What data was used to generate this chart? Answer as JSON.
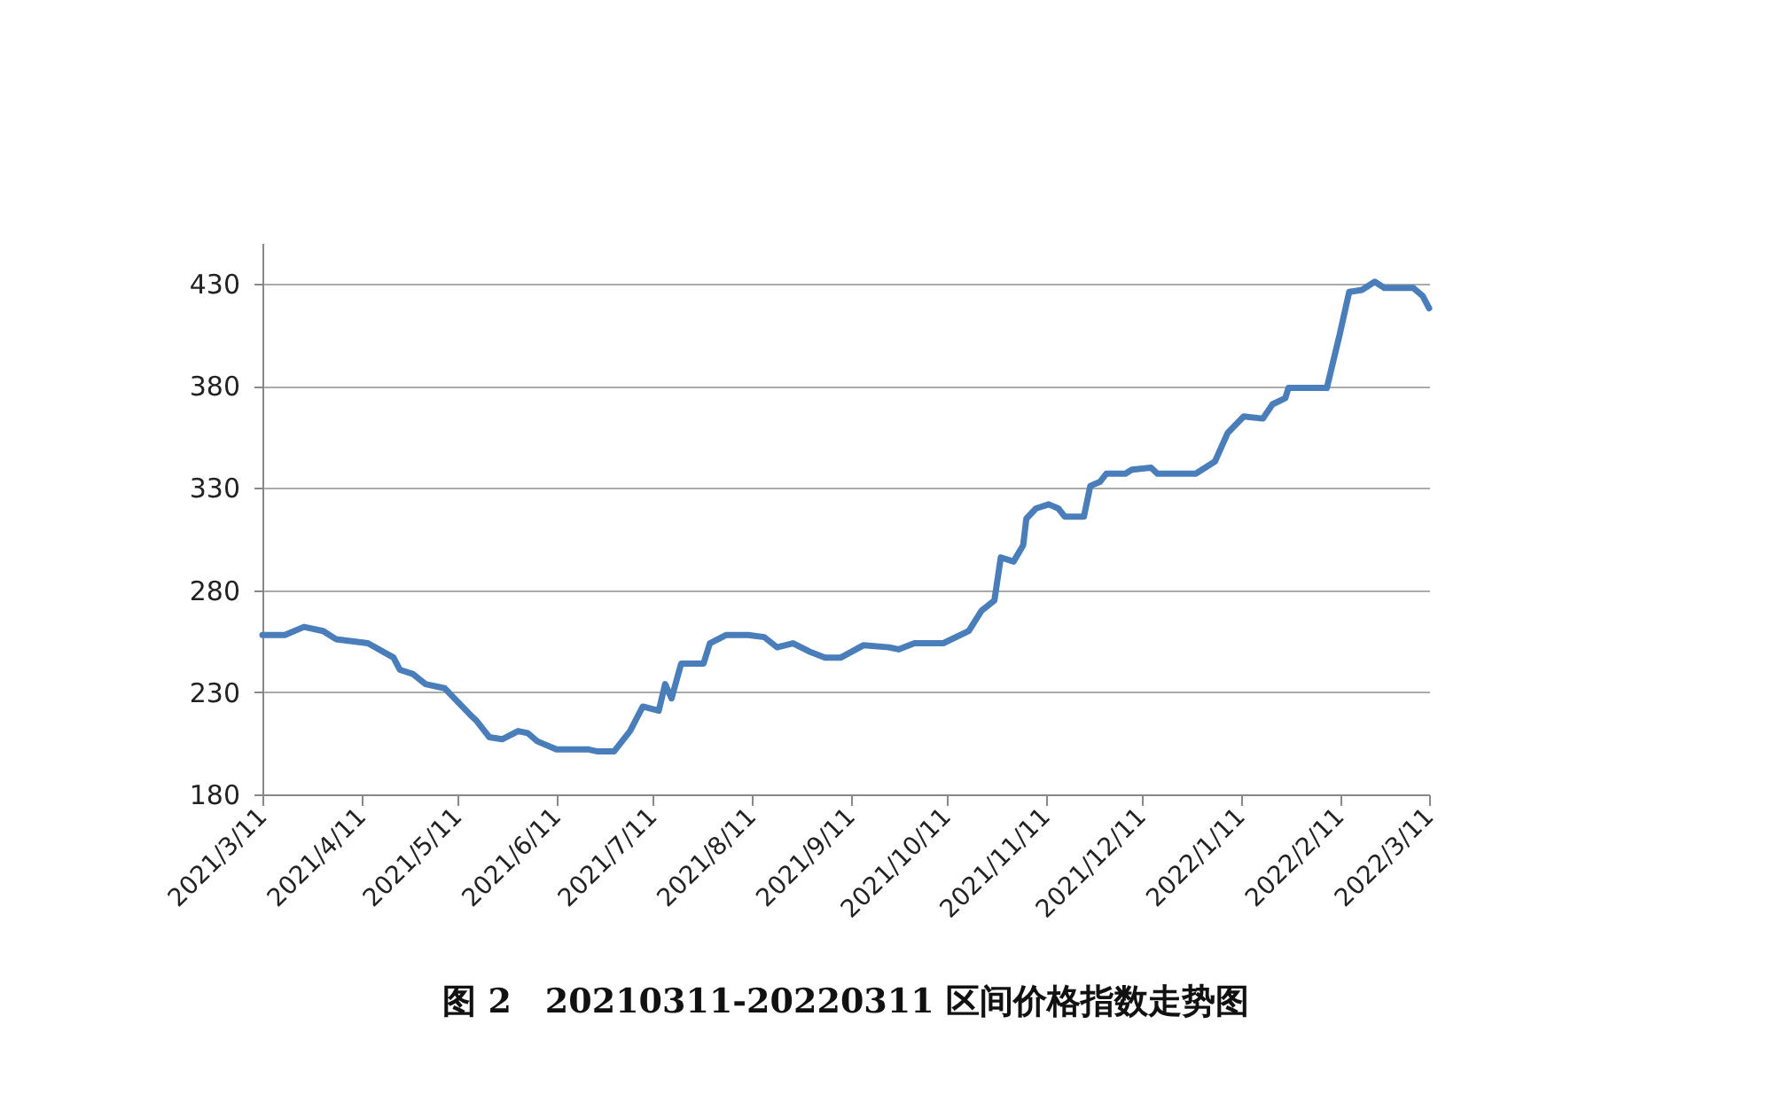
{
  "chart_data": {
    "type": "line",
    "title": "图 2　20210311-20220311 区间价格指数走势图",
    "x": [
      "2021-03-11",
      "2021-03-18",
      "2021-03-24",
      "2021-03-30",
      "2021-04-03",
      "2021-04-13",
      "2021-04-21",
      "2021-04-23",
      "2021-04-27",
      "2021-05-01",
      "2021-05-07",
      "2021-05-15",
      "2021-05-17",
      "2021-05-21",
      "2021-05-25",
      "2021-05-30",
      "2021-06-02",
      "2021-06-05",
      "2021-06-11",
      "2021-06-21",
      "2021-06-24",
      "2021-06-29",
      "2021-07-04",
      "2021-07-08",
      "2021-07-13",
      "2021-07-15",
      "2021-07-17",
      "2021-07-20",
      "2021-07-27",
      "2021-07-29",
      "2021-08-03",
      "2021-08-10",
      "2021-08-15",
      "2021-08-19",
      "2021-08-24",
      "2021-08-29",
      "2021-09-03",
      "2021-09-08",
      "2021-09-15",
      "2021-09-23",
      "2021-09-26",
      "2021-10-01",
      "2021-10-10",
      "2021-10-18",
      "2021-10-22",
      "2021-10-26",
      "2021-10-28",
      "2021-11-01",
      "2021-11-04",
      "2021-11-05",
      "2021-11-08",
      "2021-11-12",
      "2021-11-15",
      "2021-11-17",
      "2021-11-23",
      "2021-11-25",
      "2021-11-28",
      "2021-11-30",
      "2021-12-06",
      "2021-12-08",
      "2021-12-14",
      "2021-12-16",
      "2021-12-28",
      "2022-01-03",
      "2022-01-07",
      "2022-01-12",
      "2022-01-18",
      "2022-01-21",
      "2022-01-25",
      "2022-01-26",
      "2022-02-07",
      "2022-02-09",
      "2022-02-11",
      "2022-02-14",
      "2022-02-18",
      "2022-02-22",
      "2022-02-25",
      "2022-03-06",
      "2022-03-09",
      "2022-03-11"
    ],
    "series": [
      {
        "color": "#4a7ebb",
        "values": [
          258,
          258,
          262,
          260,
          256,
          254,
          247,
          241,
          239,
          234,
          232,
          219,
          216,
          208,
          207,
          211,
          210,
          206,
          202,
          202,
          201,
          201,
          211,
          223,
          221,
          234,
          227,
          244,
          244,
          254,
          258,
          258,
          257,
          252,
          254,
          250,
          247,
          247,
          253,
          252,
          251,
          254,
          254,
          260,
          270,
          275,
          296,
          294,
          302,
          315,
          320,
          322,
          320,
          316,
          316,
          331,
          333,
          337,
          337,
          339,
          340,
          337,
          337,
          343,
          357,
          365,
          364,
          371,
          374,
          379,
          379,
          392,
          405,
          426,
          427,
          431,
          428,
          428,
          424,
          418
        ]
      }
    ],
    "xlim": [
      "2021-03-11",
      "2022-03-11"
    ],
    "xticks": [
      {
        "value": "2021-03-11",
        "label": "2021/3/11"
      },
      {
        "value": "2021-04-11",
        "label": "2021/4/11"
      },
      {
        "value": "2021-05-11",
        "label": "2021/5/11"
      },
      {
        "value": "2021-06-11",
        "label": "2021/6/11"
      },
      {
        "value": "2021-07-11",
        "label": "2021/7/11"
      },
      {
        "value": "2021-08-11",
        "label": "2021/8/11"
      },
      {
        "value": "2021-09-11",
        "label": "2021/9/11"
      },
      {
        "value": "2021-10-11",
        "label": "2021/10/11"
      },
      {
        "value": "2021-11-11",
        "label": "2021/11/11"
      },
      {
        "value": "2021-12-11",
        "label": "2021/12/11"
      },
      {
        "value": "2022-01-11",
        "label": "2022/1/11"
      },
      {
        "value": "2022-02-11",
        "label": "2022/2/11"
      },
      {
        "value": "2022-03-11",
        "label": "2022/3/11"
      }
    ],
    "ylim": [
      180,
      450
    ],
    "yticks": [
      180,
      230,
      280,
      330,
      380,
      430
    ],
    "grid": "y",
    "marker": "none",
    "line_style": "solid"
  }
}
